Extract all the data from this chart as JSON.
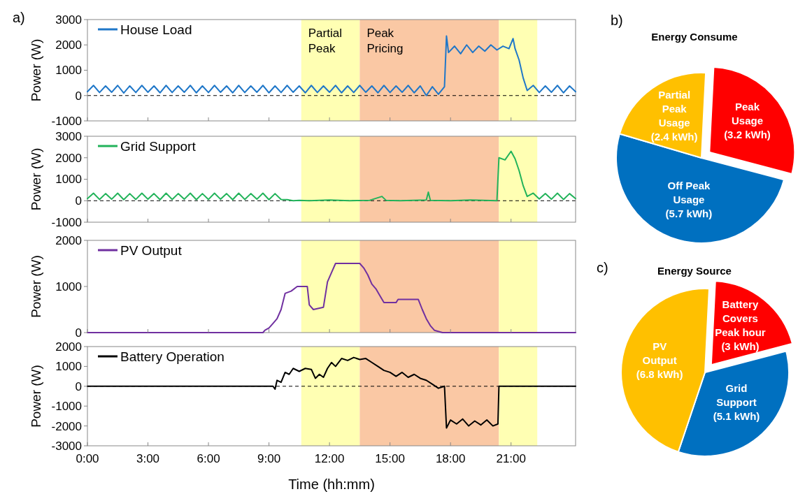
{
  "chart_data": [
    {
      "type": "line",
      "annotations": [
        "a)"
      ],
      "ylabel": "Power (W)",
      "ylim": [
        -1000,
        3000
      ],
      "yticks": [
        -1000,
        0,
        1000,
        2000,
        3000
      ],
      "xlim": [
        0,
        24.2
      ],
      "xticks": [
        {
          "value": 0,
          "label": null
        },
        {
          "value": 3,
          "label": null
        },
        {
          "value": 6,
          "label": null
        },
        {
          "value": 9,
          "label": null
        },
        {
          "value": 12,
          "label": null
        },
        {
          "value": 15,
          "label": null
        },
        {
          "value": 18,
          "label": null
        },
        {
          "value": 21,
          "label": null
        }
      ],
      "tick_labels": "y",
      "legend": "top left",
      "grid": false,
      "bands": [
        {
          "axis": "x",
          "from": 10.6,
          "to": 13.5,
          "label": "Partial\nPeak",
          "color": "#ffffb3"
        },
        {
          "axis": "x",
          "from": 13.5,
          "to": 20.4,
          "label": "Peak\nPricing",
          "color": "#fac8a4"
        },
        {
          "axis": "x",
          "from": 20.4,
          "to": 22.3,
          "color": "#ffffb3"
        }
      ],
      "ref_lines": [
        {
          "axis": "y",
          "value": 0,
          "line_style": "dashed",
          "color": "#000000"
        }
      ],
      "series": [
        {
          "name": "House Load",
          "color": "#1f77c8",
          "x": [
            0,
            0.3,
            0.6,
            0.9,
            1.2,
            1.5,
            1.8,
            2.1,
            2.4,
            2.7,
            3.0,
            3.3,
            3.6,
            3.9,
            4.2,
            4.5,
            4.8,
            5.1,
            5.4,
            5.7,
            6.0,
            6.3,
            6.6,
            6.9,
            7.2,
            7.5,
            7.8,
            8.1,
            8.4,
            8.7,
            9.0,
            9.3,
            9.6,
            9.9,
            10.2,
            10.5,
            10.8,
            11.1,
            11.4,
            11.7,
            12.0,
            12.3,
            12.6,
            12.9,
            13.2,
            13.5,
            13.8,
            14.1,
            14.4,
            14.7,
            15.0,
            15.3,
            15.6,
            15.9,
            16.2,
            16.5,
            16.8,
            17.1,
            17.4,
            17.7,
            17.8,
            17.9,
            18.2,
            18.5,
            18.8,
            19.1,
            19.4,
            19.7,
            20.0,
            20.3,
            20.6,
            20.9,
            21.1,
            21.2,
            21.4,
            21.6,
            21.8,
            22.1,
            22.4,
            22.7,
            23.0,
            23.3,
            23.6,
            23.9,
            24.2
          ],
          "values": [
            150,
            400,
            120,
            380,
            130,
            400,
            100,
            380,
            120,
            400,
            130,
            380,
            110,
            400,
            120,
            380,
            130,
            400,
            110,
            380,
            120,
            400,
            130,
            380,
            110,
            400,
            120,
            380,
            130,
            400,
            110,
            380,
            120,
            400,
            130,
            380,
            110,
            400,
            120,
            380,
            130,
            400,
            110,
            380,
            120,
            400,
            130,
            380,
            110,
            400,
            120,
            380,
            130,
            400,
            110,
            380,
            0,
            350,
            50,
            350,
            2350,
            1700,
            1950,
            1650,
            2000,
            1700,
            1950,
            1750,
            2000,
            1800,
            1950,
            1850,
            2250,
            1850,
            1400,
            700,
            200,
            400,
            120,
            380,
            130,
            400,
            110,
            380,
            150
          ]
        }
      ]
    },
    {
      "type": "line",
      "ylabel": "Power (W)",
      "ylim": [
        -1000,
        3000
      ],
      "yticks": [
        -1000,
        0,
        1000,
        2000,
        3000
      ],
      "xlim": [
        0,
        24.2
      ],
      "xticks": [
        {
          "value": 0,
          "label": null
        },
        {
          "value": 3,
          "label": null
        },
        {
          "value": 6,
          "label": null
        },
        {
          "value": 9,
          "label": null
        },
        {
          "value": 12,
          "label": null
        },
        {
          "value": 15,
          "label": null
        },
        {
          "value": 18,
          "label": null
        },
        {
          "value": 21,
          "label": null
        }
      ],
      "tick_labels": "y",
      "legend": "top left",
      "grid": false,
      "bands": [
        {
          "axis": "x",
          "from": 10.6,
          "to": 13.5,
          "color": "#ffffb3"
        },
        {
          "axis": "x",
          "from": 13.5,
          "to": 20.4,
          "color": "#fac8a4"
        },
        {
          "axis": "x",
          "from": 20.4,
          "to": 22.3,
          "color": "#ffffb3"
        }
      ],
      "ref_lines": [
        {
          "axis": "y",
          "value": 0,
          "line_style": "dashed",
          "color": "#000000"
        }
      ],
      "series": [
        {
          "name": "Grid Support",
          "color": "#22b35a",
          "x": [
            0,
            0.3,
            0.6,
            0.9,
            1.2,
            1.5,
            1.8,
            2.1,
            2.4,
            2.7,
            3.0,
            3.3,
            3.6,
            3.9,
            4.2,
            4.5,
            4.8,
            5.1,
            5.4,
            5.7,
            6.0,
            6.3,
            6.6,
            6.9,
            7.2,
            7.5,
            7.8,
            8.1,
            8.4,
            8.7,
            9.0,
            9.3,
            9.6,
            9.9,
            10.2,
            10.5,
            11.0,
            12.0,
            13.0,
            14.0,
            14.6,
            14.8,
            15.5,
            16.8,
            16.9,
            17.0,
            18.0,
            19.0,
            20.3,
            20.4,
            20.7,
            21.0,
            21.2,
            21.4,
            21.6,
            21.8,
            22.1,
            22.4,
            22.7,
            23.0,
            23.3,
            23.6,
            23.9,
            24.2
          ],
          "values": [
            100,
            350,
            60,
            330,
            70,
            350,
            50,
            330,
            60,
            350,
            70,
            330,
            50,
            350,
            60,
            330,
            70,
            350,
            50,
            330,
            60,
            350,
            70,
            330,
            50,
            350,
            60,
            330,
            70,
            350,
            50,
            330,
            60,
            50,
            0,
            20,
            0,
            30,
            0,
            20,
            200,
            20,
            0,
            30,
            400,
            20,
            0,
            30,
            0,
            2000,
            1900,
            2300,
            1950,
            1400,
            700,
            200,
            350,
            80,
            330,
            70,
            350,
            60,
            330,
            100
          ]
        }
      ]
    },
    {
      "type": "line",
      "ylabel": "Power (W)",
      "ylim": [
        0,
        2000
      ],
      "yticks": [
        0,
        1000,
        2000
      ],
      "xlim": [
        0,
        24.2
      ],
      "xticks": [
        {
          "value": 0,
          "label": null
        },
        {
          "value": 3,
          "label": null
        },
        {
          "value": 6,
          "label": null
        },
        {
          "value": 9,
          "label": null
        },
        {
          "value": 12,
          "label": null
        },
        {
          "value": 15,
          "label": null
        },
        {
          "value": 18,
          "label": null
        },
        {
          "value": 21,
          "label": null
        }
      ],
      "tick_labels": "y",
      "legend": "top left",
      "grid": false,
      "bands": [
        {
          "axis": "x",
          "from": 10.6,
          "to": 13.5,
          "color": "#ffffb3"
        },
        {
          "axis": "x",
          "from": 13.5,
          "to": 20.4,
          "color": "#fac8a4"
        },
        {
          "axis": "x",
          "from": 20.4,
          "to": 22.3,
          "color": "#ffffb3"
        }
      ],
      "series": [
        {
          "name": "PV Output",
          "color": "#7030a0",
          "x": [
            0,
            8.7,
            8.8,
            9.0,
            9.2,
            9.4,
            9.6,
            9.8,
            10.1,
            10.4,
            10.9,
            11.0,
            11.2,
            11.7,
            11.9,
            12.1,
            12.3,
            13.5,
            13.7,
            13.9,
            14.1,
            14.3,
            14.5,
            14.7,
            15.3,
            15.4,
            16.4,
            16.6,
            16.8,
            17.0,
            17.2,
            17.6,
            24.2
          ],
          "values": [
            0,
            0,
            50,
            100,
            200,
            300,
            500,
            850,
            900,
            1000,
            1000,
            600,
            500,
            550,
            1100,
            1300,
            1500,
            1500,
            1400,
            1250,
            1050,
            950,
            800,
            650,
            650,
            720,
            720,
            500,
            300,
            150,
            50,
            0,
            0
          ]
        }
      ]
    },
    {
      "type": "line",
      "ylabel": "Power (W)",
      "xlabel": "Time (hh:mm)",
      "ylim": [
        -3000,
        2000
      ],
      "yticks": [
        -3000,
        -2000,
        -1000,
        0,
        1000,
        2000
      ],
      "xlim": [
        0,
        24.2
      ],
      "xticks": [
        {
          "value": 0,
          "label": "0:00"
        },
        {
          "value": 3,
          "label": "3:00"
        },
        {
          "value": 6,
          "label": "6:00"
        },
        {
          "value": 9,
          "label": "9:00"
        },
        {
          "value": 12,
          "label": "12:00"
        },
        {
          "value": 15,
          "label": "15:00"
        },
        {
          "value": 18,
          "label": "18:00"
        },
        {
          "value": 21,
          "label": "21:00"
        }
      ],
      "legend": "top left",
      "grid": false,
      "bands": [
        {
          "axis": "x",
          "from": 10.6,
          "to": 13.5,
          "color": "#ffffb3"
        },
        {
          "axis": "x",
          "from": 13.5,
          "to": 20.4,
          "color": "#fac8a4"
        },
        {
          "axis": "x",
          "from": 20.4,
          "to": 22.3,
          "color": "#ffffb3"
        }
      ],
      "ref_lines": [
        {
          "axis": "y",
          "value": 0,
          "line_style": "dashed",
          "color": "#000000"
        }
      ],
      "series": [
        {
          "name": "Battery Operation",
          "color": "#000000",
          "x": [
            0,
            9.2,
            9.3,
            9.4,
            9.6,
            9.8,
            10.0,
            10.2,
            10.5,
            10.8,
            11.1,
            11.3,
            11.5,
            11.7,
            11.9,
            12.1,
            12.3,
            12.6,
            12.9,
            13.2,
            13.5,
            13.8,
            14.1,
            14.4,
            14.7,
            15.0,
            15.3,
            15.6,
            15.9,
            16.2,
            16.5,
            16.8,
            17.1,
            17.4,
            17.7,
            17.8,
            18.0,
            18.3,
            18.6,
            18.9,
            19.2,
            19.5,
            19.8,
            20.1,
            20.35,
            20.4,
            24.2
          ],
          "values": [
            0,
            0,
            -150,
            300,
            200,
            700,
            600,
            900,
            750,
            900,
            850,
            400,
            600,
            450,
            900,
            1200,
            1000,
            1400,
            1300,
            1450,
            1350,
            1400,
            1200,
            1000,
            800,
            700,
            500,
            700,
            450,
            600,
            400,
            300,
            100,
            -100,
            0,
            -2100,
            -1700,
            -1900,
            -1650,
            -2000,
            -1750,
            -1950,
            -1700,
            -2000,
            -1900,
            0,
            0
          ]
        }
      ]
    },
    {
      "type": "pie",
      "title": "Energy Consume",
      "annotations": [
        "b)"
      ],
      "categories": [
        "Peak\nUsage",
        "Off Peak\nUsage",
        "Partial\nPeak\nUsage"
      ],
      "values": [
        3.2,
        5.7,
        2.4
      ],
      "value_labels": [
        "(3.2 kWh)",
        "(5.7 kWh)",
        "(2.4 kWh)"
      ],
      "colors": [
        "#ff0000",
        "#0070c0",
        "#ffc000"
      ]
    },
    {
      "type": "pie",
      "title": "Energy Source",
      "annotations": [
        "c)"
      ],
      "categories": [
        "Battery\nCovers\nPeak hour",
        "Grid\nSupport",
        "PV\nOutput"
      ],
      "values": [
        3,
        5.1,
        6.8
      ],
      "value_labels": [
        "(3 kWh)",
        "(5.1 kWh)",
        "(6.8 kWh)"
      ],
      "colors": [
        "#ff0000",
        "#0070c0",
        "#ffc000"
      ]
    }
  ]
}
